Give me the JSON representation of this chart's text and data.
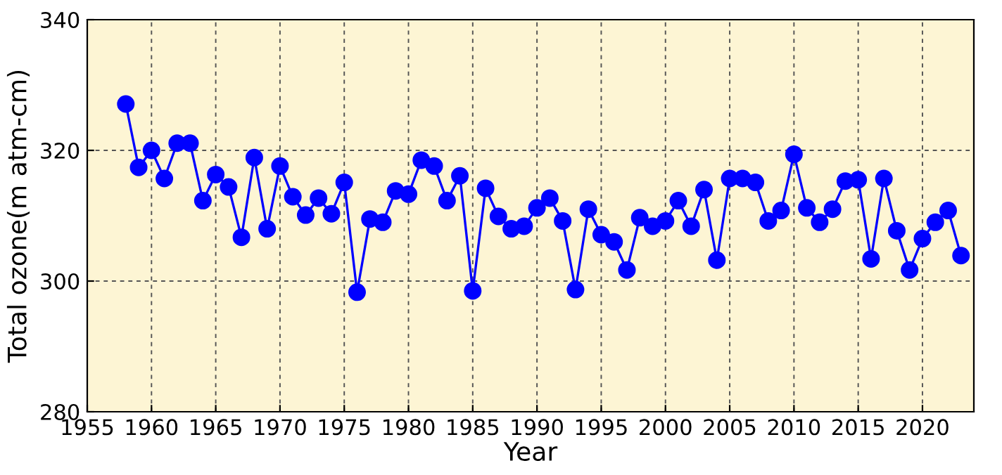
{
  "chart_data": {
    "type": "line",
    "xlabel": "Year",
    "ylabel": "Total ozone(m atm-cm)",
    "x": [
      1958,
      1959,
      1960,
      1961,
      1962,
      1963,
      1964,
      1965,
      1966,
      1967,
      1968,
      1969,
      1970,
      1971,
      1972,
      1973,
      1974,
      1975,
      1976,
      1977,
      1978,
      1979,
      1980,
      1981,
      1982,
      1983,
      1984,
      1985,
      1986,
      1987,
      1988,
      1989,
      1990,
      1991,
      1992,
      1993,
      1994,
      1995,
      1996,
      1997,
      1998,
      1999,
      2000,
      2001,
      2002,
      2003,
      2004,
      2005,
      2006,
      2007,
      2008,
      2009,
      2010,
      2011,
      2012,
      2013,
      2014,
      2015,
      2016,
      2017,
      2018,
      2019,
      2020,
      2021,
      2022,
      2023
    ],
    "series": [
      {
        "color": "#0000ff",
        "values": [
          327.1,
          317.4,
          320.0,
          315.7,
          321.1,
          321.1,
          312.3,
          316.3,
          314.4,
          306.7,
          318.9,
          308.0,
          317.6,
          312.9,
          310.1,
          312.7,
          310.3,
          315.1,
          298.3,
          309.5,
          309.0,
          313.8,
          313.3,
          318.5,
          317.6,
          312.3,
          316.1,
          298.5,
          314.2,
          309.9,
          308.0,
          308.4,
          311.2,
          312.7,
          309.2,
          298.7,
          311.0,
          307.1,
          306.0,
          301.7,
          309.7,
          308.4,
          309.2,
          312.3,
          308.4,
          314.0,
          303.2,
          315.7,
          315.7,
          315.1,
          309.2,
          310.8,
          319.4,
          311.2,
          309.0,
          311.0,
          315.3,
          315.5,
          303.4,
          315.7,
          307.7,
          301.7,
          306.5,
          309.0,
          310.8,
          303.9
        ]
      }
    ],
    "xlim": [
      1955,
      2024
    ],
    "xticks": [
      1955,
      1960,
      1965,
      1970,
      1975,
      1980,
      1985,
      1990,
      1995,
      2000,
      2005,
      2010,
      2015,
      2020
    ],
    "ylim": [
      280,
      340
    ],
    "yticks": [
      280,
      300,
      320,
      340
    ],
    "grid": true,
    "marker": "circle",
    "line_style": "solid"
  }
}
